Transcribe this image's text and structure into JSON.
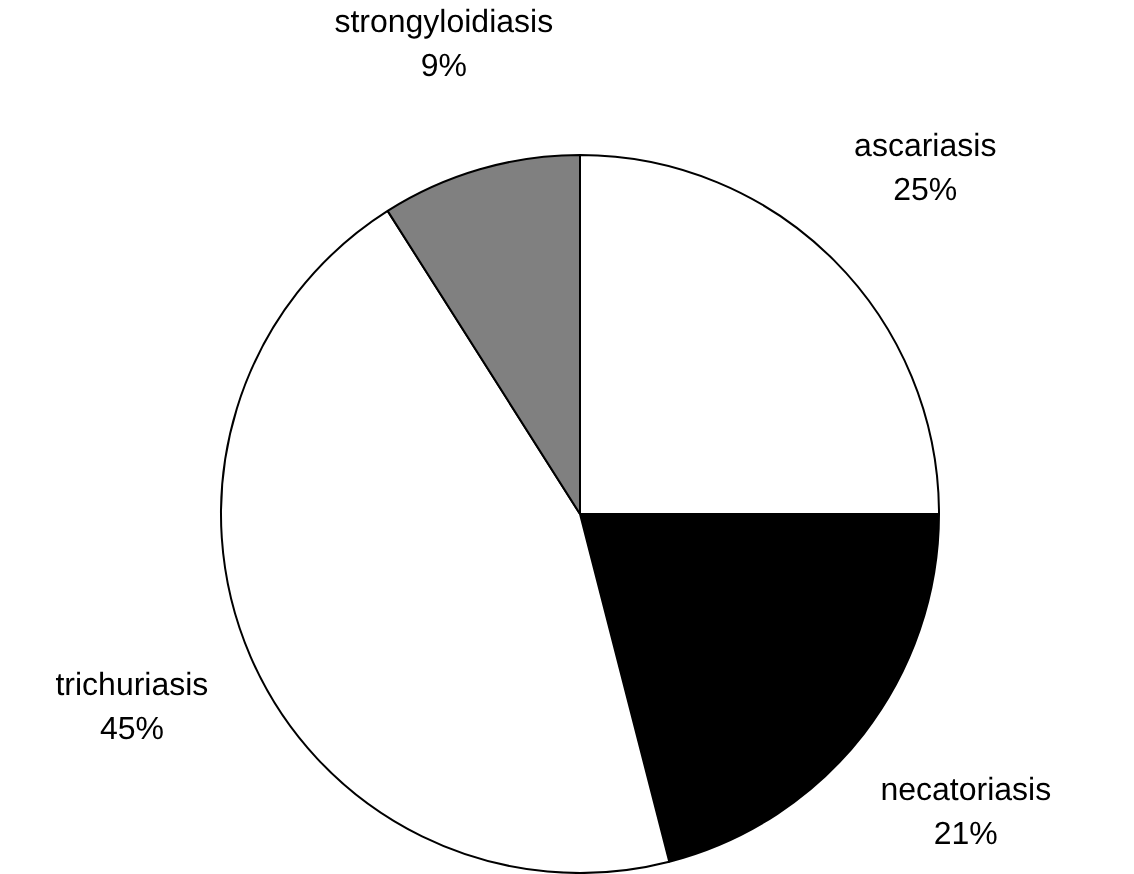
{
  "chart_data": {
    "type": "pie",
    "categories": [
      "ascariasis",
      "necatoriasis",
      "trichuriasis",
      "strongyloidiasis"
    ],
    "values": [
      25,
      21,
      45,
      9
    ],
    "value_labels": [
      "25%",
      "21%",
      "45%",
      "9%"
    ],
    "colors": [
      "#ffffff",
      "#000000",
      "#ffffff",
      "#808080"
    ],
    "legend": false
  }
}
